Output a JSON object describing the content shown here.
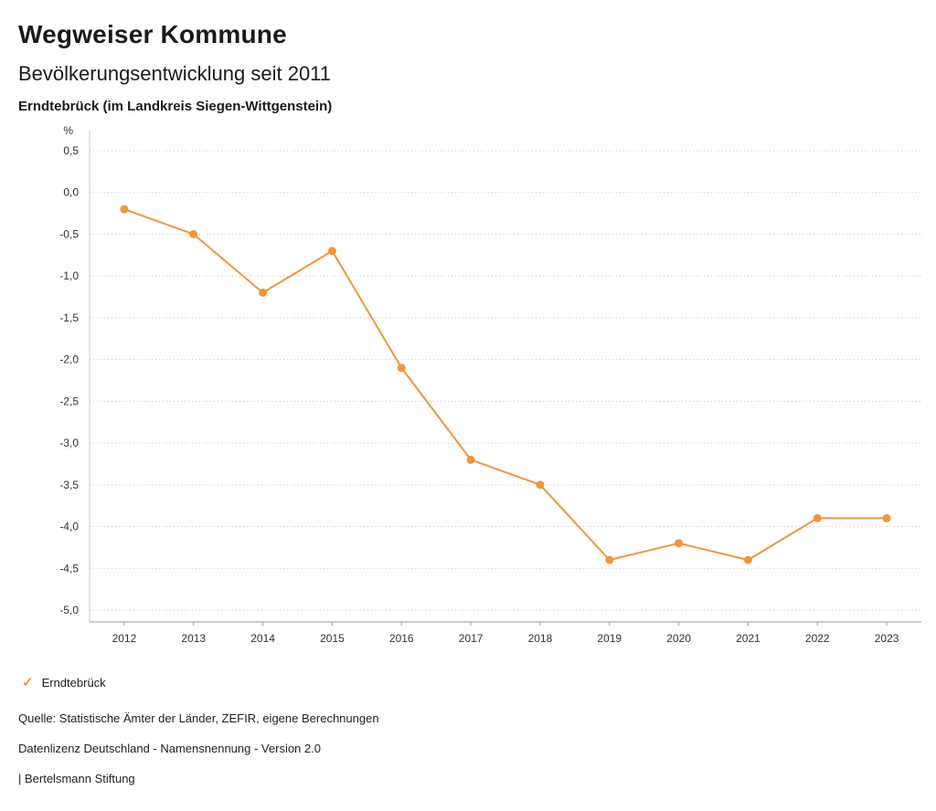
{
  "header": {
    "title": "Wegweiser Kommune",
    "subtitle": "Bevölkerungsentwicklung seit 2011",
    "region": "Erndtebrück (im Landkreis Siegen-Wittgenstein)"
  },
  "chart_data": {
    "type": "line",
    "title": "Bevölkerungsentwicklung seit 2011",
    "xlabel": "",
    "ylabel": "%",
    "unit_label": "%",
    "categories": [
      "2012",
      "2013",
      "2014",
      "2015",
      "2016",
      "2017",
      "2018",
      "2019",
      "2020",
      "2021",
      "2022",
      "2023"
    ],
    "series": [
      {
        "name": "Erndtebrück",
        "color": "#f0963f",
        "values": [
          -0.2,
          -0.5,
          -1.2,
          -0.7,
          -2.1,
          -3.2,
          -3.5,
          -4.4,
          -4.2,
          -4.4,
          -3.9,
          -3.9
        ]
      }
    ],
    "ylim": [
      -5.0,
      0.5
    ],
    "ytick_step": 0.5,
    "ytick_labels": [
      "0,5",
      "0,0",
      "-0,5",
      "-1,0",
      "-1,5",
      "-2,0",
      "-2,5",
      "-3,0",
      "-3,5",
      "-4,0",
      "-4,5",
      "-5,0"
    ],
    "grid": "horizontal-dotted",
    "legend_position": "bottom-left",
    "colors": {
      "grid": "#c8c8c8",
      "axis": "#9b9b9b",
      "tick_text": "#333333"
    }
  },
  "legend": {
    "items": [
      {
        "label": "Erndtebrück",
        "marker": "check",
        "color": "#f0963f"
      }
    ]
  },
  "footer": {
    "source": "Quelle: Statistische Ämter der Länder, ZEFIR, eigene Berechnungen",
    "license": "Datenlizenz Deutschland - Namensnennung - Version 2.0",
    "attribution": "| Bertelsmann Stiftung"
  }
}
